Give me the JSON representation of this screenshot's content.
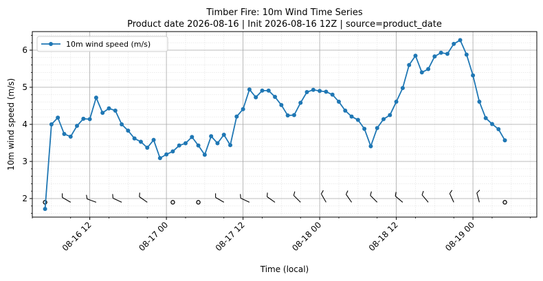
{
  "chart_data": {
    "type": "line",
    "title": "Timber Fire: 10m Wind Time Series",
    "subtitle": "Product date 2026-08-16 | Init 2026-08-16 12Z | source=product_date",
    "xlabel": "Time (local)",
    "ylabel": "10m wind speed (m/s)",
    "ylim": [
      1.5,
      6.5
    ],
    "xlim": [
      "2026-08-16 03:00",
      "2026-08-19 10:00"
    ],
    "yticks": [
      "2",
      "3",
      "4",
      "5",
      "6"
    ],
    "xticks": [
      "08-16 12",
      "08-17 00",
      "08-17 12",
      "08-18 00",
      "08-18 12",
      "08-19 00"
    ],
    "grid": "on",
    "legend_position": "top-left",
    "series": [
      {
        "name": "10m wind speed (m/s)",
        "color": "#1f77b4",
        "marker": "circle",
        "x": [
          "2026-08-16 05:00",
          "2026-08-16 06:00",
          "2026-08-16 07:00",
          "2026-08-16 08:00",
          "2026-08-16 09:00",
          "2026-08-16 10:00",
          "2026-08-16 11:00",
          "2026-08-16 12:00",
          "2026-08-16 13:00",
          "2026-08-16 14:00",
          "2026-08-16 15:00",
          "2026-08-16 16:00",
          "2026-08-16 17:00",
          "2026-08-16 18:00",
          "2026-08-16 19:00",
          "2026-08-16 20:00",
          "2026-08-16 21:00",
          "2026-08-16 22:00",
          "2026-08-16 23:00",
          "2026-08-17 00:00",
          "2026-08-17 01:00",
          "2026-08-17 02:00",
          "2026-08-17 03:00",
          "2026-08-17 04:00",
          "2026-08-17 05:00",
          "2026-08-17 06:00",
          "2026-08-17 07:00",
          "2026-08-17 08:00",
          "2026-08-17 09:00",
          "2026-08-17 10:00",
          "2026-08-17 11:00",
          "2026-08-17 12:00",
          "2026-08-17 13:00",
          "2026-08-17 14:00",
          "2026-08-17 15:00",
          "2026-08-17 16:00",
          "2026-08-17 17:00",
          "2026-08-17 18:00",
          "2026-08-17 19:00",
          "2026-08-17 20:00",
          "2026-08-17 21:00",
          "2026-08-17 22:00",
          "2026-08-17 23:00",
          "2026-08-18 00:00",
          "2026-08-18 01:00",
          "2026-08-18 02:00",
          "2026-08-18 03:00",
          "2026-08-18 04:00",
          "2026-08-18 05:00",
          "2026-08-18 06:00",
          "2026-08-18 07:00",
          "2026-08-18 08:00",
          "2026-08-18 09:00",
          "2026-08-18 10:00",
          "2026-08-18 11:00",
          "2026-08-18 12:00",
          "2026-08-18 13:00",
          "2026-08-18 14:00",
          "2026-08-18 15:00",
          "2026-08-18 16:00",
          "2026-08-18 17:00",
          "2026-08-18 18:00",
          "2026-08-18 19:00",
          "2026-08-18 20:00",
          "2026-08-18 21:00",
          "2026-08-18 22:00",
          "2026-08-18 23:00",
          "2026-08-19 00:00",
          "2026-08-19 01:00",
          "2026-08-19 02:00",
          "2026-08-19 03:00",
          "2026-08-19 04:00",
          "2026-08-19 05:00"
        ],
        "values": [
          1.72,
          4.0,
          4.18,
          3.74,
          3.67,
          3.96,
          4.15,
          4.14,
          4.72,
          4.31,
          4.43,
          4.37,
          4.0,
          3.83,
          3.62,
          3.53,
          3.37,
          3.58,
          3.09,
          3.19,
          3.27,
          3.43,
          3.49,
          3.66,
          3.43,
          3.18,
          3.68,
          3.49,
          3.72,
          3.44,
          4.21,
          4.41,
          4.94,
          4.73,
          4.91,
          4.91,
          4.74,
          4.52,
          4.24,
          4.25,
          4.58,
          4.87,
          4.93,
          4.9,
          4.88,
          4.8,
          4.61,
          4.37,
          4.21,
          4.12,
          3.88,
          3.41,
          3.9,
          4.14,
          4.25,
          4.61,
          4.98,
          5.6,
          5.85,
          5.4,
          5.49,
          5.83,
          5.93,
          5.9,
          6.17,
          6.27,
          5.88,
          5.32,
          4.61,
          4.17,
          4.01,
          3.87,
          3.57
        ]
      }
    ],
    "wind_barbs": {
      "y": 1.9,
      "x": [
        "2026-08-16 05:00",
        "2026-08-16 09:00",
        "2026-08-16 13:00",
        "2026-08-16 17:00",
        "2026-08-16 21:00",
        "2026-08-17 01:00",
        "2026-08-17 05:00",
        "2026-08-17 09:00",
        "2026-08-17 13:00",
        "2026-08-17 17:00",
        "2026-08-17 21:00",
        "2026-08-18 01:00",
        "2026-08-18 05:00",
        "2026-08-18 09:00",
        "2026-08-18 13:00",
        "2026-08-18 17:00",
        "2026-08-18 21:00",
        "2026-08-19 01:00",
        "2026-08-19 05:00"
      ],
      "calm": [
        true,
        false,
        false,
        false,
        false,
        true,
        true,
        false,
        false,
        false,
        false,
        false,
        false,
        false,
        false,
        false,
        false,
        false,
        true
      ],
      "direction_deg": [
        0,
        300,
        290,
        295,
        305,
        0,
        0,
        300,
        295,
        305,
        315,
        330,
        325,
        315,
        310,
        320,
        335,
        345,
        0
      ]
    }
  }
}
